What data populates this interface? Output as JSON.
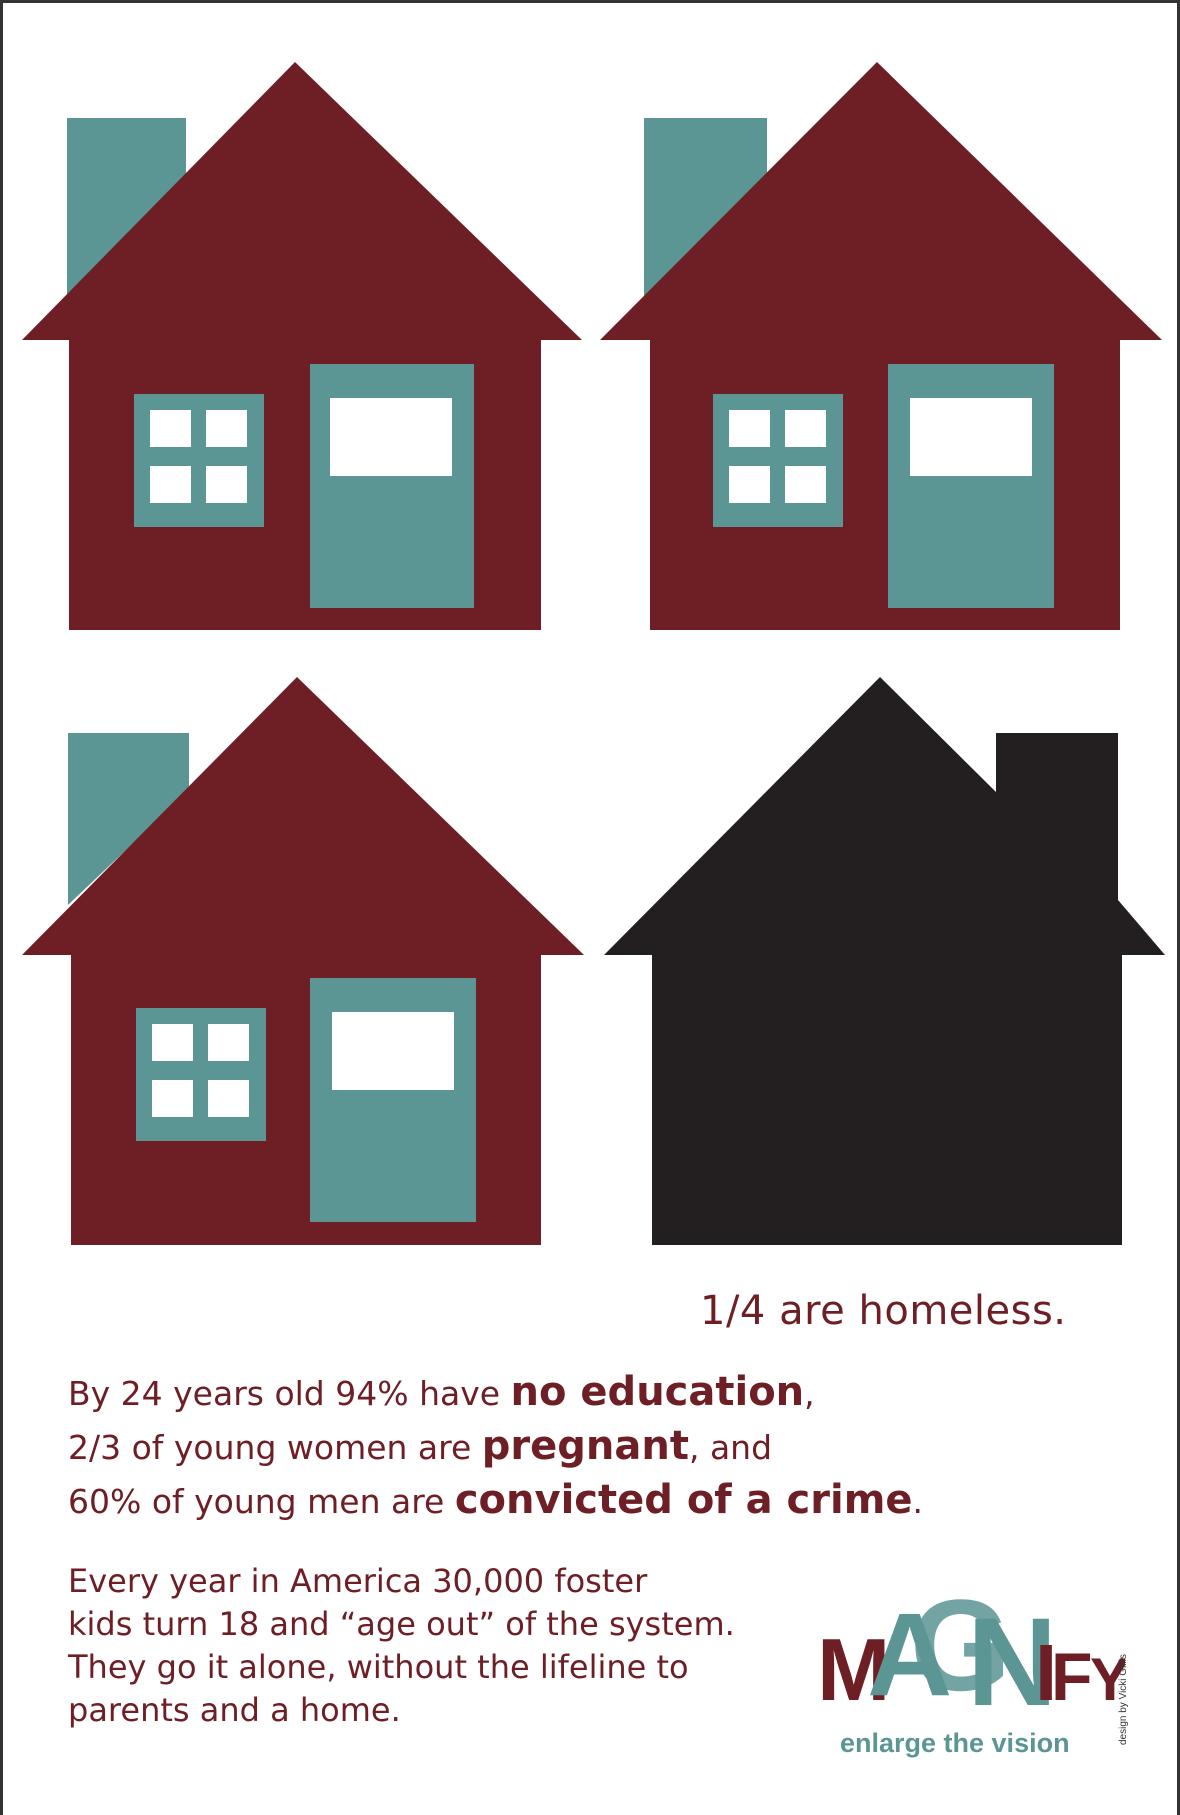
{
  "colors": {
    "house": "#6e1e25",
    "accent": "#5b9594",
    "window_pane": "#ffffff",
    "homeless_house": "#231f20",
    "text": "#6e1e25"
  },
  "houses": [
    {
      "name": "house-1",
      "state": "home"
    },
    {
      "name": "house-2",
      "state": "home"
    },
    {
      "name": "house-3",
      "state": "home"
    },
    {
      "name": "house-4",
      "state": "homeless"
    }
  ],
  "headline": "1/4 are homeless.",
  "stats": {
    "line1_a": "By 24 years old 94% have ",
    "line1_b": "no education",
    "line1_c": ",",
    "line2_a": "2/3 of young women are ",
    "line2_b": "pregnant",
    "line2_c": ", and",
    "line3_a": "60% of young men are ",
    "line3_b": "convicted of a crime",
    "line3_c": "."
  },
  "body": "Every year in America 30,000 foster\nkids turn 18 and “age out” of the system.\nThey go it alone, without the lifeline to\nparents and a home.",
  "logo": {
    "letters": [
      "M",
      "A",
      "G",
      "N",
      "I",
      "F",
      "Y"
    ],
    "tagline": "enlarge the vision"
  },
  "credit": "design by Vicki Gillis"
}
